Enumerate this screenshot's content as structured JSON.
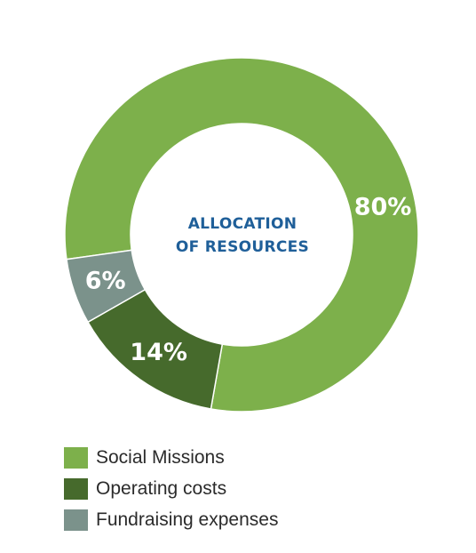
{
  "chart_data": {
    "type": "pie",
    "variant": "donut",
    "title": "",
    "center_label": [
      "ALLOCATION",
      "OF RESOURCES"
    ],
    "categories": [
      "Social Missions",
      "Operating costs",
      "Fundraising expenses"
    ],
    "values": [
      80,
      14,
      6
    ],
    "value_labels": [
      "80%",
      "14%",
      "6%"
    ],
    "unit": "%",
    "colors": [
      "#7db04b",
      "#466a2c",
      "#7b928b"
    ],
    "center_label_color": "#1f5f99",
    "legend_position": "bottom-left",
    "grid": false
  }
}
